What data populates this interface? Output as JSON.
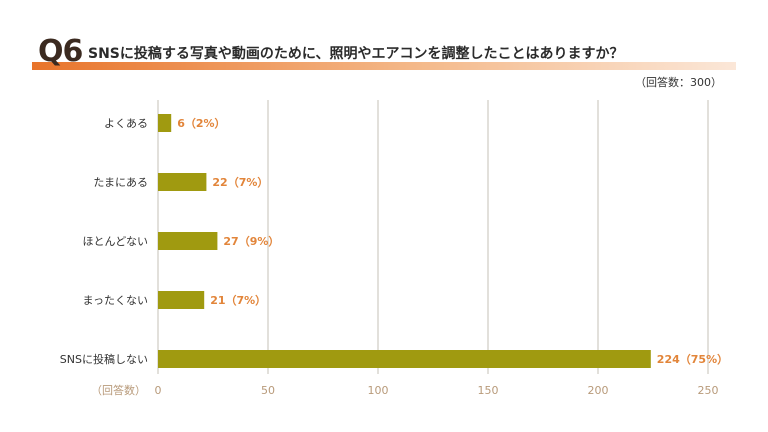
{
  "question": {
    "number": "Q6",
    "text": "SNSに投稿する写真や動画のために、照明やエアコンを調整したことはありますか？",
    "note": "（回答数：300）"
  },
  "colors": {
    "bar": "#a09a10",
    "label": "#e2853a",
    "grid": "#d9d5cf",
    "accent": "#e8742b"
  },
  "chart_data": {
    "type": "bar",
    "orientation": "horizontal",
    "categories": [
      "よくある",
      "たまにある",
      "ほとんどない",
      "まったくない",
      "SNSに投稿しない"
    ],
    "values": [
      6,
      22,
      27,
      21,
      224
    ],
    "data_labels": [
      "6（2%）",
      "22（7%）",
      "27（9%）",
      "21（7%）",
      "224（75%）"
    ],
    "xlabel": "（回答数）",
    "ticks": [
      "0",
      "50",
      "100",
      "150",
      "200",
      "250"
    ],
    "xlim": [
      0,
      250
    ],
    "grid": true
  }
}
